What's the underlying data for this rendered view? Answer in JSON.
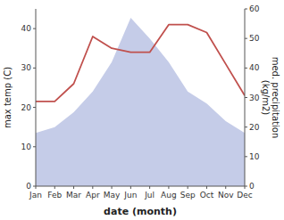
{
  "chart_data": {
    "type": "line",
    "categories": [
      "Jan",
      "Feb",
      "Mar",
      "Apr",
      "May",
      "Jun",
      "Jul",
      "Aug",
      "Sep",
      "Oct",
      "Nov",
      "Dec"
    ],
    "x_label": "date (month)",
    "y_label": "max temp (C)",
    "y2_label": "med. precipitation\n(kg/m2)",
    "ylim": [
      0,
      45
    ],
    "yticks": [
      0,
      10,
      20,
      30,
      40
    ],
    "y2lim": [
      0,
      60
    ],
    "y2ticks": [
      0,
      10,
      20,
      30,
      40,
      50,
      60
    ],
    "series": [
      {
        "type": "area",
        "axis": "y2",
        "color": "#c5cce8",
        "values": [
          18,
          20,
          25,
          32,
          42,
          57,
          50,
          42,
          32,
          28,
          22,
          18
        ]
      },
      {
        "type": "line",
        "color": "#c0504d",
        "values": [
          21.5,
          21.5,
          26,
          38,
          35,
          34,
          34,
          41,
          41,
          39,
          31,
          23
        ]
      }
    ]
  }
}
